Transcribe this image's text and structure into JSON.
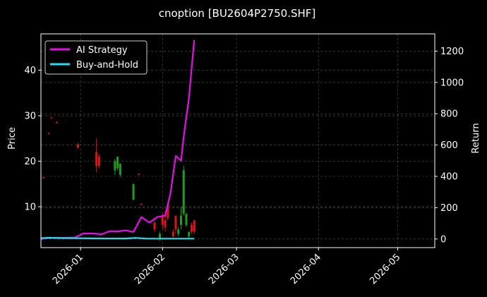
{
  "chart_data": {
    "type": "line",
    "title": "cnoption [BU2604P2750.SHF]",
    "xlabel": "",
    "ylabel": "Price",
    "y2label": "Return",
    "grid": true,
    "legend_position": "top-left",
    "x_ticks": [
      "2026-01",
      "2026-02",
      "2026-03",
      "2026-04",
      "2026-05"
    ],
    "x_range": [
      "2025-12-17",
      "2026-05-15"
    ],
    "ylim": [
      1,
      48
    ],
    "y_ticks": [
      10,
      20,
      30,
      40
    ],
    "y2lim": [
      -55,
      1310
    ],
    "y2_ticks": [
      0,
      200,
      400,
      600,
      800,
      1000,
      1200
    ],
    "colors": {
      "ai_strategy": "#e60fe6",
      "buy_and_hold": "#1fe0f0",
      "up": "#1e9e1e",
      "down": "#e01414",
      "grid": "#555555",
      "axis": "#ffffff"
    },
    "series": [
      {
        "name": "AI Strategy",
        "axis": "right",
        "x": [
          "2025-12-17",
          "2025-12-19",
          "2025-12-23",
          "2025-12-26",
          "2025-12-30",
          "2026-01-02",
          "2026-01-06",
          "2026-01-09",
          "2026-01-12",
          "2026-01-15",
          "2026-01-18",
          "2026-01-21",
          "2026-01-24",
          "2026-01-27",
          "2026-01-30",
          "2026-02-02",
          "2026-02-04",
          "2026-02-06",
          "2026-02-08",
          "2026-02-09",
          "2026-02-11",
          "2026-02-13"
        ],
        "values": [
          0,
          5,
          8,
          8,
          10,
          35,
          35,
          30,
          50,
          48,
          55,
          45,
          140,
          105,
          140,
          150,
          290,
          530,
          500,
          650,
          900,
          1270
        ]
      },
      {
        "name": "Buy-and-Hold",
        "axis": "right",
        "x": [
          "2025-12-17",
          "2025-12-20",
          "2025-12-25",
          "2026-01-01",
          "2026-01-10",
          "2026-01-18",
          "2026-01-22",
          "2026-01-26",
          "2026-02-01",
          "2026-02-07",
          "2026-02-13"
        ],
        "values": [
          5,
          8,
          6,
          5,
          3,
          3,
          7,
          2,
          2,
          2,
          2
        ]
      }
    ],
    "candles": [
      {
        "date": "2025-12-18",
        "open": 16.5,
        "close": 16.3,
        "high": 16.6,
        "low": 16.2
      },
      {
        "date": "2025-12-20",
        "open": 26.2,
        "close": 26.0,
        "high": 26.3,
        "low": 25.9
      },
      {
        "date": "2025-12-21",
        "open": 29.6,
        "close": 29.4,
        "high": 29.7,
        "low": 29.3
      },
      {
        "date": "2025-12-23",
        "open": 28.6,
        "close": 28.4,
        "high": 28.7,
        "low": 28.3
      },
      {
        "date": "2025-12-31",
        "open": 23.7,
        "close": 23.0,
        "high": 24.0,
        "low": 22.8
      },
      {
        "date": "2026-01-07",
        "open": 22.0,
        "close": 19.0,
        "high": 25.0,
        "low": 17.5
      },
      {
        "date": "2026-01-08",
        "open": 21.0,
        "close": 19.0,
        "high": 21.5,
        "low": 18.5
      },
      {
        "date": "2026-01-14",
        "open": 18.0,
        "close": 20.0,
        "high": 20.5,
        "low": 17.0
      },
      {
        "date": "2026-01-15",
        "open": 18.5,
        "close": 21.0,
        "high": 21.0,
        "low": 18.0
      },
      {
        "date": "2026-01-16",
        "open": 17.0,
        "close": 19.5,
        "high": 19.5,
        "low": 16.5
      },
      {
        "date": "2026-01-21",
        "open": 11.5,
        "close": 15.0,
        "high": 15.0,
        "low": 11.5
      },
      {
        "date": "2026-01-23",
        "open": 17.2,
        "close": 17.0,
        "high": 17.3,
        "low": 16.9
      },
      {
        "date": "2026-01-24",
        "open": 10.6,
        "close": 10.4,
        "high": 10.7,
        "low": 10.3
      },
      {
        "date": "2026-01-29",
        "open": 6.5,
        "close": 5.0,
        "high": 7.0,
        "low": 4.5
      },
      {
        "date": "2026-01-31",
        "open": 3.0,
        "close": 4.0,
        "high": 4.5,
        "low": 2.5
      },
      {
        "date": "2026-02-01",
        "open": 8.0,
        "close": 6.0,
        "high": 8.5,
        "low": 5.0
      },
      {
        "date": "2026-02-02",
        "open": 7.0,
        "close": 5.5,
        "high": 9.0,
        "low": 4.5
      },
      {
        "date": "2026-02-03",
        "open": 10.5,
        "close": 7.5,
        "high": 11.0,
        "low": 7.0
      },
      {
        "date": "2026-02-05",
        "open": 4.5,
        "close": 3.5,
        "high": 5.0,
        "low": 3.0
      },
      {
        "date": "2026-02-06",
        "open": 8.0,
        "close": 5.0,
        "high": 8.0,
        "low": 4.0
      },
      {
        "date": "2026-02-07",
        "open": 4.0,
        "close": 5.0,
        "high": 5.5,
        "low": 3.5
      },
      {
        "date": "2026-02-08",
        "open": 6.0,
        "close": 8.0,
        "high": 10.0,
        "low": 5.0
      },
      {
        "date": "2026-02-09",
        "open": 8.5,
        "close": 18.0,
        "high": 19.0,
        "low": 8.0
      },
      {
        "date": "2026-02-10",
        "open": 6.0,
        "close": 8.5,
        "high": 8.5,
        "low": 5.5
      },
      {
        "date": "2026-02-11",
        "open": 3.5,
        "close": 4.5,
        "high": 4.5,
        "low": 3.0
      },
      {
        "date": "2026-02-12",
        "open": 6.0,
        "close": 4.5,
        "high": 6.5,
        "low": 4.0
      },
      {
        "date": "2026-02-13",
        "open": 7.0,
        "close": 4.5,
        "high": 7.0,
        "low": 4.0
      }
    ]
  }
}
